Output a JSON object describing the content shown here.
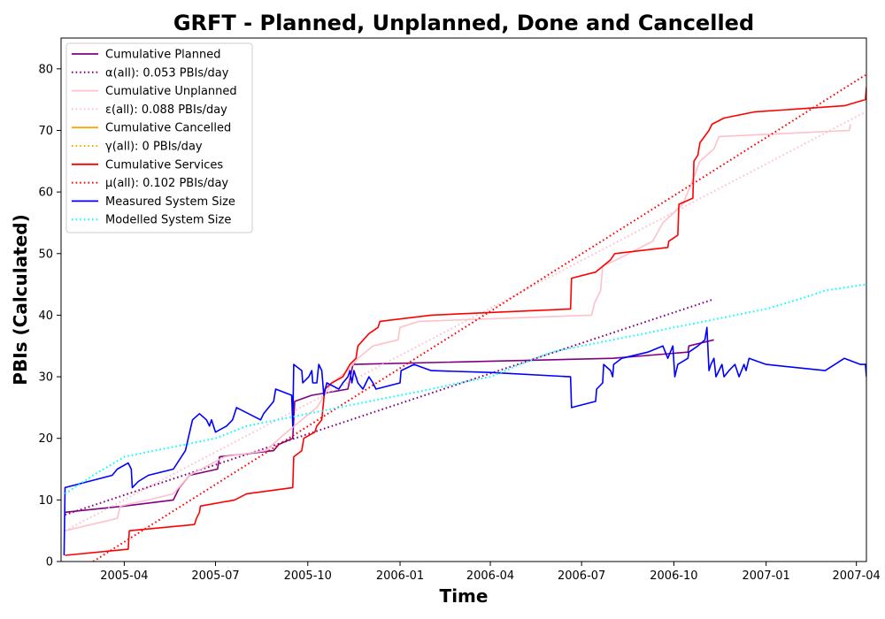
{
  "chart_data": {
    "type": "line",
    "title": "GRFT - Planned, Unplanned, Done  and Cancelled",
    "xlabel": "Time",
    "ylabel": "PBIs (Calculated)",
    "xlim": [
      "2005-01-28",
      "2007-04-11"
    ],
    "ylim": [
      0,
      85
    ],
    "x_ticks": [
      "2005-04",
      "2005-07",
      "2005-10",
      "2006-01",
      "2006-04",
      "2006-07",
      "2006-10",
      "2007-01",
      "2007-04"
    ],
    "y_ticks": [
      0,
      10,
      20,
      30,
      40,
      50,
      60,
      70,
      80
    ],
    "grid": false,
    "legend_position": "top-left",
    "series": [
      {
        "name": "Cumulative Planned",
        "color": "#800080",
        "style": "solid",
        "points": [
          [
            "2005-02-01",
            8
          ],
          [
            "2005-04-01",
            9
          ],
          [
            "2005-05-20",
            10
          ],
          [
            "2005-05-26",
            12
          ],
          [
            "2005-06-05",
            14
          ],
          [
            "2005-07-03",
            15
          ],
          [
            "2005-07-05",
            17
          ],
          [
            "2005-08-28",
            18
          ],
          [
            "2005-09-02",
            19
          ],
          [
            "2005-09-16",
            20
          ],
          [
            "2005-09-18",
            26
          ],
          [
            "2005-10-05",
            27
          ],
          [
            "2005-11-10",
            28
          ],
          [
            "2005-11-15",
            32
          ],
          [
            "2006-08-01",
            33
          ],
          [
            "2006-10-15",
            34
          ],
          [
            "2006-10-16",
            35
          ],
          [
            "2006-11-10",
            36
          ]
        ]
      },
      {
        "name": "α(all): 0.053 PBIs/day",
        "color": "#800080",
        "style": "dotted",
        "points": [
          [
            "2005-02-01",
            7.6
          ],
          [
            "2006-11-10",
            42.6
          ]
        ]
      },
      {
        "name": "Cumulative Unplanned",
        "color": "#ffc0cb",
        "style": "solid",
        "points": [
          [
            "2005-02-01",
            5
          ],
          [
            "2005-03-25",
            7
          ],
          [
            "2005-03-28",
            9
          ],
          [
            "2005-04-25",
            10
          ],
          [
            "2005-05-20",
            11
          ],
          [
            "2005-06-05",
            14
          ],
          [
            "2005-07-10",
            17
          ],
          [
            "2005-08-20",
            18
          ],
          [
            "2005-09-10",
            21
          ],
          [
            "2005-09-25",
            23
          ],
          [
            "2005-10-10",
            25
          ],
          [
            "2005-10-25",
            29
          ],
          [
            "2005-11-10",
            31
          ],
          [
            "2005-11-20",
            33
          ],
          [
            "2005-12-05",
            35
          ],
          [
            "2005-12-30",
            36
          ],
          [
            "2006-01-01",
            38
          ],
          [
            "2006-01-20",
            39
          ],
          [
            "2006-07-11",
            40
          ],
          [
            "2006-07-14",
            42
          ],
          [
            "2006-07-20",
            44
          ],
          [
            "2006-07-22",
            48
          ],
          [
            "2006-08-05",
            49
          ],
          [
            "2006-09-10",
            52
          ],
          [
            "2006-09-20",
            55
          ],
          [
            "2006-10-10",
            58
          ],
          [
            "2006-10-20",
            62
          ],
          [
            "2006-10-27",
            65
          ],
          [
            "2006-11-10",
            67
          ],
          [
            "2006-11-15",
            69
          ],
          [
            "2007-03-25",
            70
          ],
          [
            "2007-03-26",
            71
          ]
        ]
      },
      {
        "name": "ε(all): 0.088 PBIs/day",
        "color": "#ffc0cb",
        "style": "dotted",
        "points": [
          [
            "2005-02-01",
            5
          ],
          [
            "2007-04-10",
            73
          ]
        ]
      },
      {
        "name": "Cumulative Cancelled",
        "color": "#ffa500",
        "style": "solid",
        "points": []
      },
      {
        "name": "γ(all): 0 PBIs/day",
        "color": "#ffa500",
        "style": "dotted",
        "points": []
      },
      {
        "name": "Cumulative Services",
        "color": "#ff0000",
        "style": "solid",
        "points": [
          [
            "2005-02-01",
            1
          ],
          [
            "2005-04-05",
            2
          ],
          [
            "2005-04-06",
            5
          ],
          [
            "2005-06-10",
            6
          ],
          [
            "2005-06-12",
            7
          ],
          [
            "2005-06-15",
            8
          ],
          [
            "2005-06-16",
            9
          ],
          [
            "2005-07-20",
            10
          ],
          [
            "2005-08-01",
            11
          ],
          [
            "2005-09-16",
            12
          ],
          [
            "2005-09-17",
            17
          ],
          [
            "2005-09-25",
            18
          ],
          [
            "2005-09-27",
            20
          ],
          [
            "2005-10-08",
            21
          ],
          [
            "2005-10-10",
            22
          ],
          [
            "2005-10-15",
            23
          ],
          [
            "2005-10-18",
            28
          ],
          [
            "2005-10-25",
            29
          ],
          [
            "2005-11-05",
            30
          ],
          [
            "2005-11-12",
            32
          ],
          [
            "2005-11-18",
            33
          ],
          [
            "2005-11-20",
            35
          ],
          [
            "2005-12-01",
            37
          ],
          [
            "2005-12-10",
            38
          ],
          [
            "2005-12-12",
            39
          ],
          [
            "2006-02-01",
            40
          ],
          [
            "2006-06-20",
            41
          ],
          [
            "2006-06-21",
            46
          ],
          [
            "2006-07-15",
            47
          ],
          [
            "2006-07-30",
            49
          ],
          [
            "2006-08-03",
            50
          ],
          [
            "2006-09-25",
            51
          ],
          [
            "2006-09-26",
            52
          ],
          [
            "2006-10-05",
            53
          ],
          [
            "2006-10-06",
            58
          ],
          [
            "2006-10-20",
            59
          ],
          [
            "2006-10-21",
            65
          ],
          [
            "2006-10-25",
            66
          ],
          [
            "2006-10-27",
            68
          ],
          [
            "2006-11-05",
            70
          ],
          [
            "2006-11-08",
            71
          ],
          [
            "2006-11-20",
            72
          ],
          [
            "2006-12-20",
            73
          ],
          [
            "2007-03-20",
            74
          ],
          [
            "2007-04-10",
            75
          ],
          [
            "2007-04-11",
            77
          ]
        ]
      },
      {
        "name": "μ(all): 0.102 PBIs/day",
        "color": "#ff0000",
        "style": "dotted",
        "points": [
          [
            "2005-03-01",
            0
          ],
          [
            "2007-04-10",
            79
          ]
        ]
      },
      {
        "name": "Measured System Size",
        "color": "#0000ff",
        "style": "solid",
        "points": [
          [
            "2005-01-31",
            1
          ],
          [
            "2005-02-01",
            12
          ],
          [
            "2005-03-20",
            14
          ],
          [
            "2005-03-25",
            15
          ],
          [
            "2005-04-05",
            16
          ],
          [
            "2005-04-08",
            15
          ],
          [
            "2005-04-09",
            12
          ],
          [
            "2005-04-15",
            13
          ],
          [
            "2005-04-25",
            14
          ],
          [
            "2005-05-20",
            15
          ],
          [
            "2005-06-01",
            18
          ],
          [
            "2005-06-08",
            23
          ],
          [
            "2005-06-15",
            24
          ],
          [
            "2005-06-22",
            23
          ],
          [
            "2005-06-25",
            22
          ],
          [
            "2005-06-27",
            23
          ],
          [
            "2005-07-01",
            21
          ],
          [
            "2005-07-12",
            22
          ],
          [
            "2005-07-18",
            23
          ],
          [
            "2005-07-22",
            25
          ],
          [
            "2005-08-15",
            23
          ],
          [
            "2005-08-18",
            24
          ],
          [
            "2005-08-28",
            26
          ],
          [
            "2005-08-30",
            28
          ],
          [
            "2005-09-15",
            27
          ],
          [
            "2005-09-16",
            22
          ],
          [
            "2005-09-17",
            32
          ],
          [
            "2005-09-25",
            31
          ],
          [
            "2005-09-26",
            29
          ],
          [
            "2005-10-02",
            30
          ],
          [
            "2005-10-05",
            31
          ],
          [
            "2005-10-06",
            29
          ],
          [
            "2005-10-10",
            29
          ],
          [
            "2005-10-12",
            32
          ],
          [
            "2005-10-15",
            31
          ],
          [
            "2005-10-17",
            27
          ],
          [
            "2005-10-20",
            29
          ],
          [
            "2005-11-01",
            28
          ],
          [
            "2005-11-05",
            29
          ],
          [
            "2005-11-10",
            30
          ],
          [
            "2005-11-12",
            31
          ],
          [
            "2005-11-14",
            29
          ],
          [
            "2005-11-16",
            31
          ],
          [
            "2005-11-20",
            29
          ],
          [
            "2005-11-25",
            28
          ],
          [
            "2005-12-01",
            30
          ],
          [
            "2005-12-05",
            29
          ],
          [
            "2005-12-08",
            28
          ],
          [
            "2006-01-01",
            29
          ],
          [
            "2006-01-02",
            31
          ],
          [
            "2006-01-15",
            32
          ],
          [
            "2006-02-01",
            31
          ],
          [
            "2006-04-01",
            30.7
          ],
          [
            "2006-06-20",
            30
          ],
          [
            "2006-06-21",
            25
          ],
          [
            "2006-07-15",
            26
          ],
          [
            "2006-07-16",
            28
          ],
          [
            "2006-07-22",
            29
          ],
          [
            "2006-07-23",
            32
          ],
          [
            "2006-07-30",
            31
          ],
          [
            "2006-08-01",
            30
          ],
          [
            "2006-08-02",
            32
          ],
          [
            "2006-08-10",
            33
          ],
          [
            "2006-09-05",
            34
          ],
          [
            "2006-09-20",
            35
          ],
          [
            "2006-09-25",
            33
          ],
          [
            "2006-09-30",
            35
          ],
          [
            "2006-10-02",
            30
          ],
          [
            "2006-10-05",
            32
          ],
          [
            "2006-10-15",
            33
          ],
          [
            "2006-10-16",
            34
          ],
          [
            "2006-10-25",
            35
          ],
          [
            "2006-11-01",
            36
          ],
          [
            "2006-11-03",
            38
          ],
          [
            "2006-11-05",
            31
          ],
          [
            "2006-11-07",
            32
          ],
          [
            "2006-11-10",
            33
          ],
          [
            "2006-11-12",
            30
          ],
          [
            "2006-11-15",
            31
          ],
          [
            "2006-11-18",
            32
          ],
          [
            "2006-11-20",
            30
          ],
          [
            "2006-11-25",
            31
          ],
          [
            "2006-12-01",
            32
          ],
          [
            "2006-12-05",
            30
          ],
          [
            "2006-12-10",
            32
          ],
          [
            "2006-12-12",
            31
          ],
          [
            "2006-12-15",
            33
          ],
          [
            "2007-01-01",
            32
          ],
          [
            "2007-03-01",
            31
          ],
          [
            "2007-03-20",
            33
          ],
          [
            "2007-04-05",
            32
          ],
          [
            "2007-04-10",
            32
          ],
          [
            "2007-04-11",
            30
          ]
        ]
      },
      {
        "name": "Modelled System Size",
        "color": "#00ffff",
        "style": "dotted",
        "points": [
          [
            "2005-02-01",
            11
          ],
          [
            "2005-03-01",
            14
          ],
          [
            "2005-04-01",
            17
          ],
          [
            "2005-05-01",
            18
          ],
          [
            "2005-06-01",
            19
          ],
          [
            "2005-07-01",
            20
          ],
          [
            "2005-08-01",
            22
          ],
          [
            "2005-09-01",
            23
          ],
          [
            "2005-10-01",
            24
          ],
          [
            "2005-11-01",
            25
          ],
          [
            "2005-12-01",
            26
          ],
          [
            "2006-01-01",
            27
          ],
          [
            "2006-02-01",
            28
          ],
          [
            "2006-03-01",
            29
          ],
          [
            "2006-04-01",
            30
          ],
          [
            "2006-05-01",
            32
          ],
          [
            "2006-06-01",
            34
          ],
          [
            "2006-07-01",
            35
          ],
          [
            "2006-08-01",
            36
          ],
          [
            "2006-09-01",
            37
          ],
          [
            "2006-10-01",
            38
          ],
          [
            "2006-11-01",
            39
          ],
          [
            "2006-12-01",
            40
          ],
          [
            "2007-01-01",
            41
          ],
          [
            "2007-02-01",
            42.5
          ],
          [
            "2007-03-01",
            44
          ],
          [
            "2007-04-10",
            45
          ]
        ]
      }
    ]
  }
}
